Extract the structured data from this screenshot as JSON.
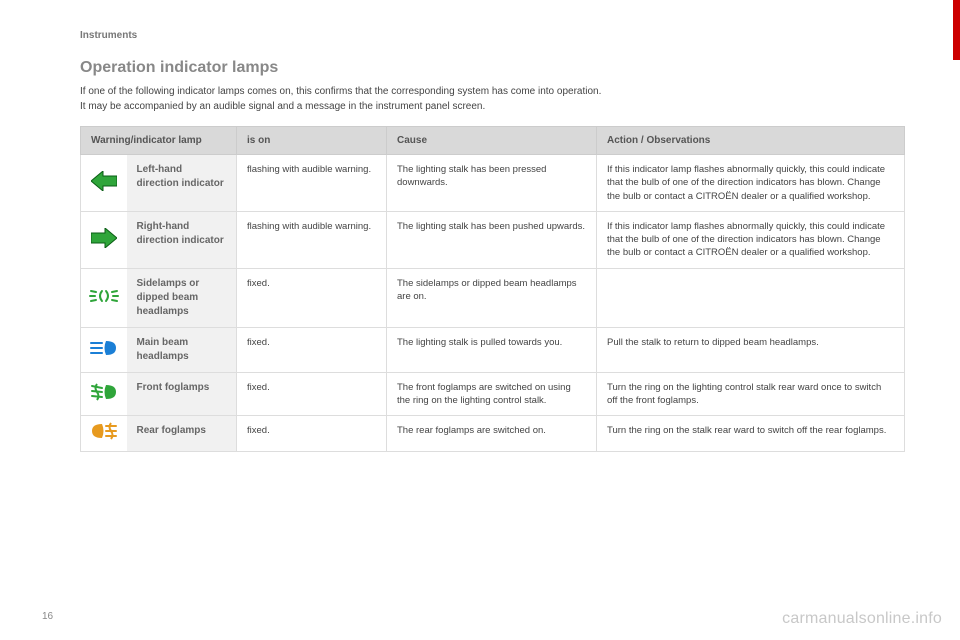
{
  "section_label": "Instruments",
  "heading": "Operation indicator lamps",
  "intro_line1": "If one of the following indicator lamps comes on, this confirms that the corresponding system has come into operation.",
  "intro_line2": "It may be accompanied by an audible signal and a message in the instrument panel screen.",
  "page_number": "16",
  "watermark": "carmanualsonline.info",
  "columns": {
    "lamp": "Warning/indicator lamp",
    "is_on": "is on",
    "cause": "Cause",
    "action": "Action / Observations"
  },
  "rows": [
    {
      "icon": "left-arrow",
      "icon_color": "#2fa53a",
      "label": "Left-hand direction indicator",
      "is_on": "flashing with audible warning.",
      "cause": "The lighting stalk has been pressed downwards.",
      "action": "If this indicator lamp flashes abnormally quickly, this could indicate that the bulb of one of the direction indicators has blown. Change the bulb or contact a CITROËN dealer or a qualified workshop."
    },
    {
      "icon": "right-arrow",
      "icon_color": "#2fa53a",
      "label": "Right-hand direction indicator",
      "is_on": "flashing with audible warning.",
      "cause": "The lighting stalk has been pushed upwards.",
      "action": "If this indicator lamp flashes abnormally quickly, this could indicate that the bulb of one of the direction indicators has blown. Change the bulb or contact a CITROËN dealer or a qualified workshop."
    },
    {
      "icon": "sidelamps",
      "icon_color": "#2fa53a",
      "label": "Sidelamps or dipped beam headlamps",
      "is_on": "fixed.",
      "cause": "The sidelamps or dipped beam headlamps are on.",
      "action": ""
    },
    {
      "icon": "main-beam",
      "icon_color": "#1b7fd6",
      "label": "Main beam headlamps",
      "is_on": "fixed.",
      "cause": "The lighting stalk is pulled towards you.",
      "action": "Pull the stalk to return to dipped beam headlamps."
    },
    {
      "icon": "front-fog",
      "icon_color": "#2fa53a",
      "label": "Front foglamps",
      "is_on": "fixed.",
      "cause": "The front foglamps are switched on using the ring on the lighting control stalk.",
      "action": "Turn the ring on the lighting control stalk rear ward once to switch off the front foglamps."
    },
    {
      "icon": "rear-fog",
      "icon_color": "#e79a1f",
      "label": "Rear foglamps",
      "is_on": "fixed.",
      "cause": "The rear foglamps are switched on.",
      "action": "Turn the ring on the stalk rear ward to switch off the rear foglamps."
    }
  ]
}
